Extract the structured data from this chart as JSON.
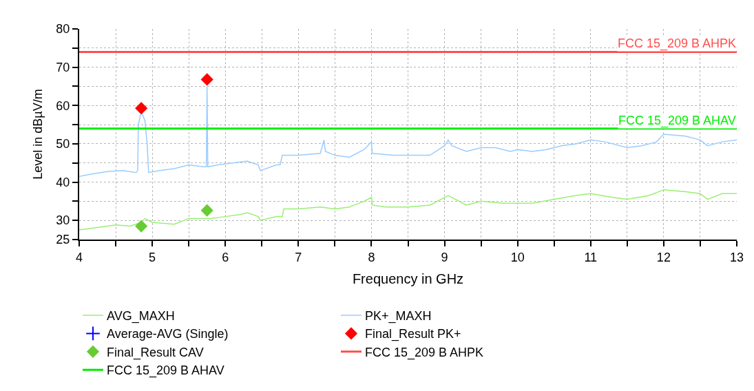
{
  "chart_data": {
    "type": "line",
    "xlabel": "Frequency in GHz",
    "ylabel": "Level in dBµV/m",
    "xlim": [
      4,
      13
    ],
    "ylim": [
      25,
      80
    ],
    "xticks": [
      4,
      {
        "value": 4.5,
        "label": null
      },
      5,
      {
        "value": 5.5,
        "label": null
      },
      6,
      {
        "value": 6.5,
        "label": null
      },
      7,
      {
        "value": 7.5,
        "label": null
      },
      8,
      {
        "value": 8.5,
        "label": null
      },
      9,
      {
        "value": 9.5,
        "label": null
      },
      10,
      {
        "value": 10.5,
        "label": null
      },
      11,
      {
        "value": 11.5,
        "label": null
      },
      12,
      {
        "value": 12.5,
        "label": null
      },
      13
    ],
    "yticks": [
      25,
      30,
      {
        "value": 35,
        "label": null
      },
      40,
      {
        "value": 45,
        "label": null
      },
      50,
      {
        "value": 55,
        "label": null
      },
      60,
      {
        "value": 65,
        "label": null
      },
      70,
      {
        "value": 75,
        "label": null
      },
      80
    ],
    "grid": true,
    "legend": "bottom",
    "line_style": "solid",
    "series": [
      {
        "name": "AVG_MAXH",
        "color": "#98f070",
        "marker": "none",
        "x": [
          4,
          4.3,
          4.5,
          4.7,
          4.85,
          4.9,
          5,
          5.3,
          5.5,
          5.8,
          6,
          6.2,
          6.3,
          6.45,
          6.48,
          6.7,
          6.78,
          6.8,
          7,
          7.3,
          7.5,
          7.7,
          7.9,
          8,
          8.01,
          8.2,
          8.5,
          8.8,
          9,
          9.05,
          9.3,
          9.5,
          9.8,
          10,
          10.2,
          10.5,
          10.8,
          11,
          11.3,
          11.5,
          11.8,
          12,
          12.3,
          12.5,
          12.6,
          12.8,
          13
        ],
        "values": [
          27.5,
          28.3,
          28.8,
          28.5,
          29.5,
          30.5,
          29.5,
          29,
          30.5,
          30.5,
          31,
          31.5,
          32,
          31,
          30,
          31,
          31,
          33,
          33,
          33.5,
          33,
          33.5,
          35,
          36,
          34,
          33.5,
          33.5,
          34,
          36,
          36.5,
          34,
          35,
          34.5,
          34.5,
          34.5,
          35.5,
          36.5,
          37,
          36,
          35.5,
          36.5,
          38,
          37.5,
          37,
          35.5,
          37,
          37
        ]
      },
      {
        "name": "PK+_MAXH",
        "color": "#99ccff",
        "marker": "none",
        "x": [
          4,
          4.2,
          4.4,
          4.6,
          4.78,
          4.8,
          4.81,
          4.85,
          4.9,
          4.93,
          4.95,
          5.1,
          5.3,
          5.5,
          5.7,
          5.74,
          5.75,
          5.76,
          5.9,
          6.1,
          6.3,
          6.45,
          6.48,
          6.7,
          6.75,
          6.78,
          7,
          7.3,
          7.35,
          7.37,
          7.5,
          7.7,
          7.9,
          8,
          8.01,
          8.3,
          8.6,
          8.8,
          9,
          9.05,
          9.1,
          9.3,
          9.5,
          9.7,
          9.9,
          10,
          10.2,
          10.4,
          10.6,
          10.8,
          11,
          11.2,
          11.5,
          11.7,
          11.9,
          12,
          12.3,
          12.5,
          12.6,
          12.8,
          13
        ],
        "values": [
          41.5,
          42.2,
          42.8,
          43,
          42.5,
          43,
          55,
          58.5,
          56,
          50,
          42.5,
          43,
          43.5,
          44.5,
          44,
          44,
          65,
          44,
          44.5,
          45,
          45.5,
          44.5,
          43,
          44.5,
          44.5,
          47,
          47,
          47.5,
          51,
          48,
          47,
          46.5,
          48.5,
          50.5,
          47.5,
          47,
          47,
          47,
          49.5,
          51,
          49.5,
          48,
          49,
          49,
          48,
          48.5,
          48,
          48.5,
          49.5,
          50,
          51,
          50.5,
          49,
          49.5,
          50.5,
          52.5,
          52,
          51,
          49.5,
          50.5,
          51
        ]
      },
      {
        "name": "Average-AVG (Single)",
        "type": "scatter",
        "color": "#0000ff",
        "marker": "cross"
      },
      {
        "name": "Final_Result PK+",
        "type": "scatter",
        "color": "#ff0000",
        "marker": "diamond",
        "x": [
          4.85,
          5.75
        ],
        "values": [
          59.3,
          66.8
        ]
      },
      {
        "name": "Final_Result CAV",
        "type": "scatter",
        "color": "#66cc33",
        "marker": "diamond",
        "x": [
          4.85,
          5.75
        ],
        "values": [
          28.5,
          32.6
        ]
      }
    ],
    "ref_lines": [
      {
        "axis": "y",
        "value": 74,
        "label": "FCC 15_209 B AHPK",
        "color": "#ff4d4d",
        "line_style": "solid"
      },
      {
        "axis": "y",
        "value": 54,
        "label": "FCC 15_209 B AHAV",
        "color": "#00ee00",
        "line_style": "solid"
      }
    ]
  }
}
